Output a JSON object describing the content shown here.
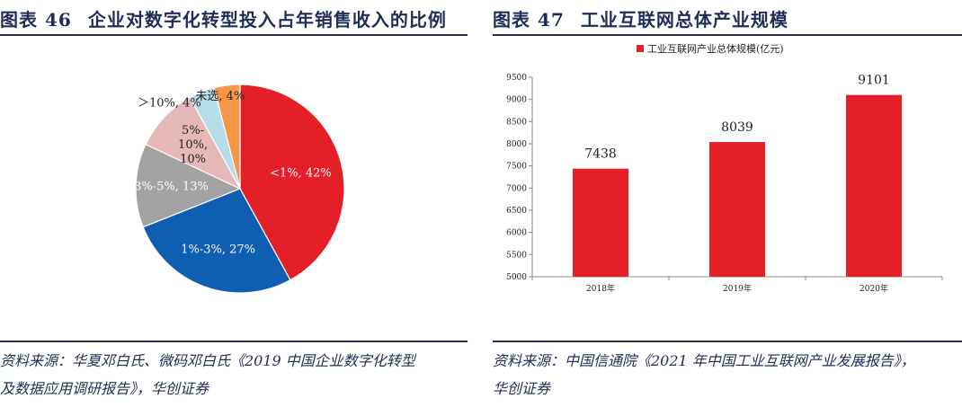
{
  "left": {
    "fig_label": "图表",
    "fig_num": "46",
    "title": "企业对数字化转型投入占年销售收入的比例",
    "source_line1": "资料来源：华夏邓白氏、微码邓白氏《2019 中国企业数字化转型",
    "source_line2": "及数据应用调研报告》，华创证券",
    "chart_data": {
      "type": "pie",
      "title": "",
      "slices": [
        {
          "label": "<1%, 42%",
          "lines": [
            "<1%, 42%"
          ],
          "value": 42,
          "color": "#e41f28",
          "label_color": "#ffffff"
        },
        {
          "label": "1%-3%, 27%",
          "lines": [
            "1%-3%, 27%"
          ],
          "value": 27,
          "color": "#0e5eb2",
          "label_color": "#ffffff"
        },
        {
          "label": "3%-5%, 13%",
          "lines": [
            "3%-5%, 13%"
          ],
          "value": 13,
          "color": "#a3a3a3",
          "label_color": "#ffffff"
        },
        {
          "label": "5%-10%, 10%",
          "lines": [
            "5%-",
            "10%,",
            "10%"
          ],
          "value": 10,
          "color": "#e6b8b7",
          "label_color": "#222222"
        },
        {
          "label": ">10%, 4%",
          "lines": [
            "＞10%, 4%"
          ],
          "value": 4,
          "color": "#b7dde8",
          "label_color": "#222222"
        },
        {
          "label": "未选, 4%",
          "lines": [
            "未选, 4%"
          ],
          "value": 4,
          "color": "#f79646",
          "label_color": "#222222"
        }
      ]
    }
  },
  "right": {
    "fig_label": "图表",
    "fig_num": "47",
    "title": "工业互联网总体产业规模",
    "source_line1": "资料来源：中国信通院《2021 年中国工业互联网产业发展报告》，",
    "source_line2": "华创证券",
    "chart_data": {
      "type": "bar",
      "title": "",
      "categories": [
        "2018年",
        "2019年",
        "2020年"
      ],
      "series": [
        {
          "name": "工业互联网产业总体规模(亿元)",
          "values": [
            7438,
            8039,
            9101
          ],
          "color": "#e41f28"
        }
      ],
      "ylim": [
        5000,
        9500
      ],
      "yticks": [
        5000,
        5500,
        6000,
        6500,
        7000,
        7500,
        8000,
        8500,
        9000,
        9500
      ],
      "legend": "top-center",
      "grid": false
    }
  }
}
